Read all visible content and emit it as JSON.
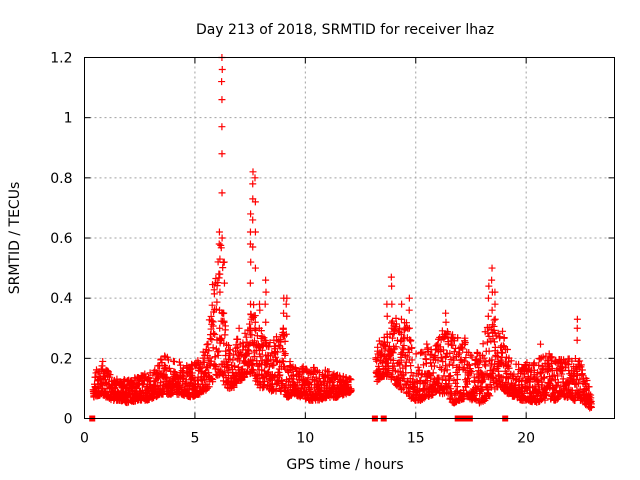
{
  "chart_data": {
    "type": "scatter",
    "title": "Day 213 of 2018, SRMTID for receiver lhaz",
    "xlabel": "GPS time / hours",
    "ylabel": "SRMTID / TECUs",
    "xlim": [
      0,
      24
    ],
    "ylim": [
      0,
      1.2
    ],
    "x_ticks": [
      0,
      5,
      10,
      15,
      20
    ],
    "x_tick_labels": [
      "0",
      "5",
      "10",
      "15",
      "20"
    ],
    "y_ticks": [
      0,
      0.2,
      0.4,
      0.6,
      0.8,
      1.0,
      1.2
    ],
    "y_tick_labels": [
      "0",
      "0.2",
      "0.4",
      "0.6",
      "0.8",
      "1",
      "1.2"
    ],
    "grid": true,
    "legend": "none",
    "marker": "plus",
    "series_color": "#ff0000",
    "flag_color": "#ff0000",
    "data_gap_hours": [
      12.1,
      13.2
    ],
    "zero_flags_x": [
      0.35,
      13.15,
      13.55,
      16.9,
      17.15,
      17.3,
      17.45,
      19.05
    ],
    "envelope": {
      "x": [
        0.4,
        0.8,
        1.2,
        1.6,
        2.0,
        2.4,
        2.8,
        3.2,
        3.6,
        4.0,
        4.4,
        4.8,
        5.2,
        5.5,
        5.8,
        6.0,
        6.2,
        6.4,
        6.6,
        6.8,
        7.0,
        7.3,
        7.6,
        7.8,
        8.0,
        8.2,
        8.5,
        8.8,
        9.0,
        9.2,
        9.5,
        9.8,
        10.2,
        10.6,
        11.0,
        11.4,
        11.8,
        12.1,
        13.2,
        13.5,
        13.8,
        14.0,
        14.3,
        14.6,
        14.9,
        15.2,
        15.5,
        15.8,
        16.1,
        16.4,
        16.7,
        17.0,
        17.3,
        17.6,
        17.9,
        18.2,
        18.4,
        18.6,
        18.9,
        19.2,
        19.5,
        19.8,
        20.1,
        20.4,
        20.7,
        21.0,
        21.3,
        21.6,
        21.9,
        22.2,
        22.4,
        22.6,
        22.8,
        22.95
      ],
      "low": [
        0.07,
        0.08,
        0.06,
        0.06,
        0.05,
        0.06,
        0.06,
        0.07,
        0.08,
        0.08,
        0.08,
        0.07,
        0.08,
        0.09,
        0.12,
        0.14,
        0.15,
        0.1,
        0.1,
        0.1,
        0.12,
        0.14,
        0.15,
        0.11,
        0.1,
        0.1,
        0.09,
        0.09,
        0.08,
        0.07,
        0.08,
        0.07,
        0.06,
        0.06,
        0.07,
        0.07,
        0.08,
        0.09,
        0.12,
        0.14,
        0.14,
        0.12,
        0.1,
        0.08,
        0.06,
        0.06,
        0.07,
        0.08,
        0.08,
        0.07,
        0.05,
        0.06,
        0.07,
        0.06,
        0.05,
        0.06,
        0.08,
        0.1,
        0.1,
        0.08,
        0.07,
        0.06,
        0.06,
        0.05,
        0.06,
        0.06,
        0.06,
        0.07,
        0.07,
        0.06,
        0.06,
        0.05,
        0.04,
        0.03
      ],
      "high": [
        0.14,
        0.2,
        0.14,
        0.13,
        0.13,
        0.14,
        0.15,
        0.17,
        0.21,
        0.2,
        0.19,
        0.18,
        0.2,
        0.24,
        0.45,
        0.55,
        0.7,
        0.3,
        0.23,
        0.22,
        0.32,
        0.28,
        0.4,
        0.32,
        0.3,
        0.26,
        0.26,
        0.28,
        0.3,
        0.2,
        0.17,
        0.18,
        0.17,
        0.17,
        0.16,
        0.15,
        0.14,
        0.14,
        0.24,
        0.28,
        0.3,
        0.36,
        0.3,
        0.33,
        0.22,
        0.22,
        0.25,
        0.24,
        0.3,
        0.3,
        0.28,
        0.3,
        0.26,
        0.21,
        0.26,
        0.3,
        0.38,
        0.32,
        0.3,
        0.22,
        0.2,
        0.18,
        0.2,
        0.19,
        0.26,
        0.22,
        0.21,
        0.2,
        0.2,
        0.22,
        0.2,
        0.17,
        0.12,
        0.1
      ]
    },
    "spikes": [
      {
        "x": 6.12,
        "values": [
          0.3,
          0.36,
          0.42,
          0.48,
          0.53,
          0.58,
          0.62
        ]
      },
      {
        "x": 6.22,
        "values": [
          0.6,
          0.75,
          0.88,
          0.97,
          1.06,
          1.12,
          1.16,
          1.2
        ]
      },
      {
        "x": 6.32,
        "values": [
          0.25,
          0.35,
          0.45,
          0.52
        ]
      },
      {
        "x": 7.52,
        "values": [
          0.3,
          0.38,
          0.45,
          0.52,
          0.58,
          0.62,
          0.68
        ]
      },
      {
        "x": 7.62,
        "values": [
          0.57,
          0.66,
          0.73,
          0.78,
          0.82
        ]
      },
      {
        "x": 7.72,
        "values": [
          0.32,
          0.5,
          0.62,
          0.72,
          0.8
        ]
      },
      {
        "x": 7.92,
        "values": [
          0.3,
          0.36,
          0.38
        ]
      },
      {
        "x": 8.2,
        "values": [
          0.32,
          0.38,
          0.42,
          0.46
        ]
      },
      {
        "x": 9.02,
        "values": [
          0.3,
          0.35,
          0.4
        ]
      },
      {
        "x": 9.15,
        "values": [
          0.28,
          0.34,
          0.38,
          0.4
        ]
      },
      {
        "x": 13.7,
        "values": [
          0.28,
          0.34,
          0.38
        ]
      },
      {
        "x": 13.9,
        "values": [
          0.3,
          0.38,
          0.44,
          0.47
        ]
      },
      {
        "x": 14.35,
        "values": [
          0.28,
          0.33,
          0.38
        ]
      },
      {
        "x": 14.7,
        "values": [
          0.3,
          0.36,
          0.4
        ]
      },
      {
        "x": 16.35,
        "values": [
          0.28,
          0.32,
          0.35
        ]
      },
      {
        "x": 18.3,
        "values": [
          0.34,
          0.4,
          0.44
        ]
      },
      {
        "x": 18.45,
        "values": [
          0.36,
          0.42,
          0.46,
          0.5
        ]
      },
      {
        "x": 18.6,
        "values": [
          0.33,
          0.38,
          0.42
        ]
      },
      {
        "x": 22.3,
        "values": [
          0.26,
          0.3,
          0.33
        ]
      }
    ]
  }
}
